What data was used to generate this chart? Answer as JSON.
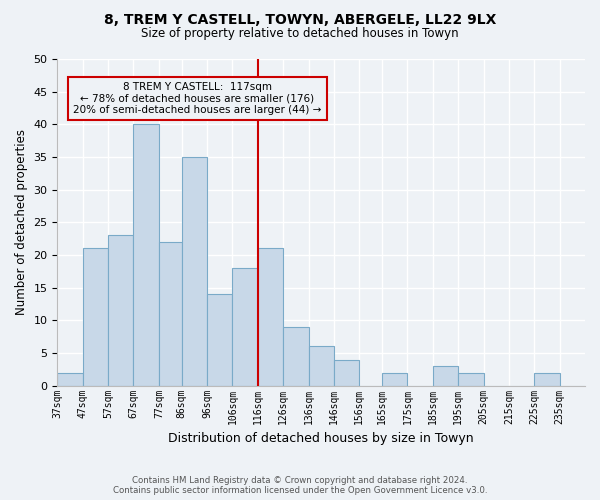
{
  "title": "8, TREM Y CASTELL, TOWYN, ABERGELE, LL22 9LX",
  "subtitle": "Size of property relative to detached houses in Towyn",
  "xlabel": "Distribution of detached houses by size in Towyn",
  "ylabel": "Number of detached properties",
  "bins": [
    "37sqm",
    "47sqm",
    "57sqm",
    "67sqm",
    "77sqm",
    "86sqm",
    "96sqm",
    "106sqm",
    "116sqm",
    "126sqm",
    "136sqm",
    "146sqm",
    "156sqm",
    "165sqm",
    "175sqm",
    "185sqm",
    "195sqm",
    "205sqm",
    "215sqm",
    "225sqm",
    "235sqm"
  ],
  "bin_edges": [
    37,
    47,
    57,
    67,
    77,
    86,
    96,
    106,
    116,
    126,
    136,
    146,
    156,
    165,
    175,
    185,
    195,
    205,
    215,
    225,
    235,
    245
  ],
  "values": [
    2,
    21,
    23,
    40,
    22,
    35,
    14,
    18,
    21,
    9,
    6,
    4,
    0,
    2,
    0,
    3,
    2,
    0,
    0,
    2,
    0
  ],
  "bar_color": "#c8d8e8",
  "bar_edgecolor": "#7aaac8",
  "marker_value": 116,
  "marker_color": "#cc0000",
  "ylim": [
    0,
    50
  ],
  "yticks": [
    0,
    5,
    10,
    15,
    20,
    25,
    30,
    35,
    40,
    45,
    50
  ],
  "annotation_title": "8 TREM Y CASTELL:  117sqm",
  "annotation_line1": "← 78% of detached houses are smaller (176)",
  "annotation_line2": "20% of semi-detached houses are larger (44) →",
  "annotation_box_color": "#cc0000",
  "footer_line1": "Contains HM Land Registry data © Crown copyright and database right 2024.",
  "footer_line2": "Contains public sector information licensed under the Open Government Licence v3.0.",
  "background_color": "#eef2f6",
  "grid_color": "#ffffff"
}
